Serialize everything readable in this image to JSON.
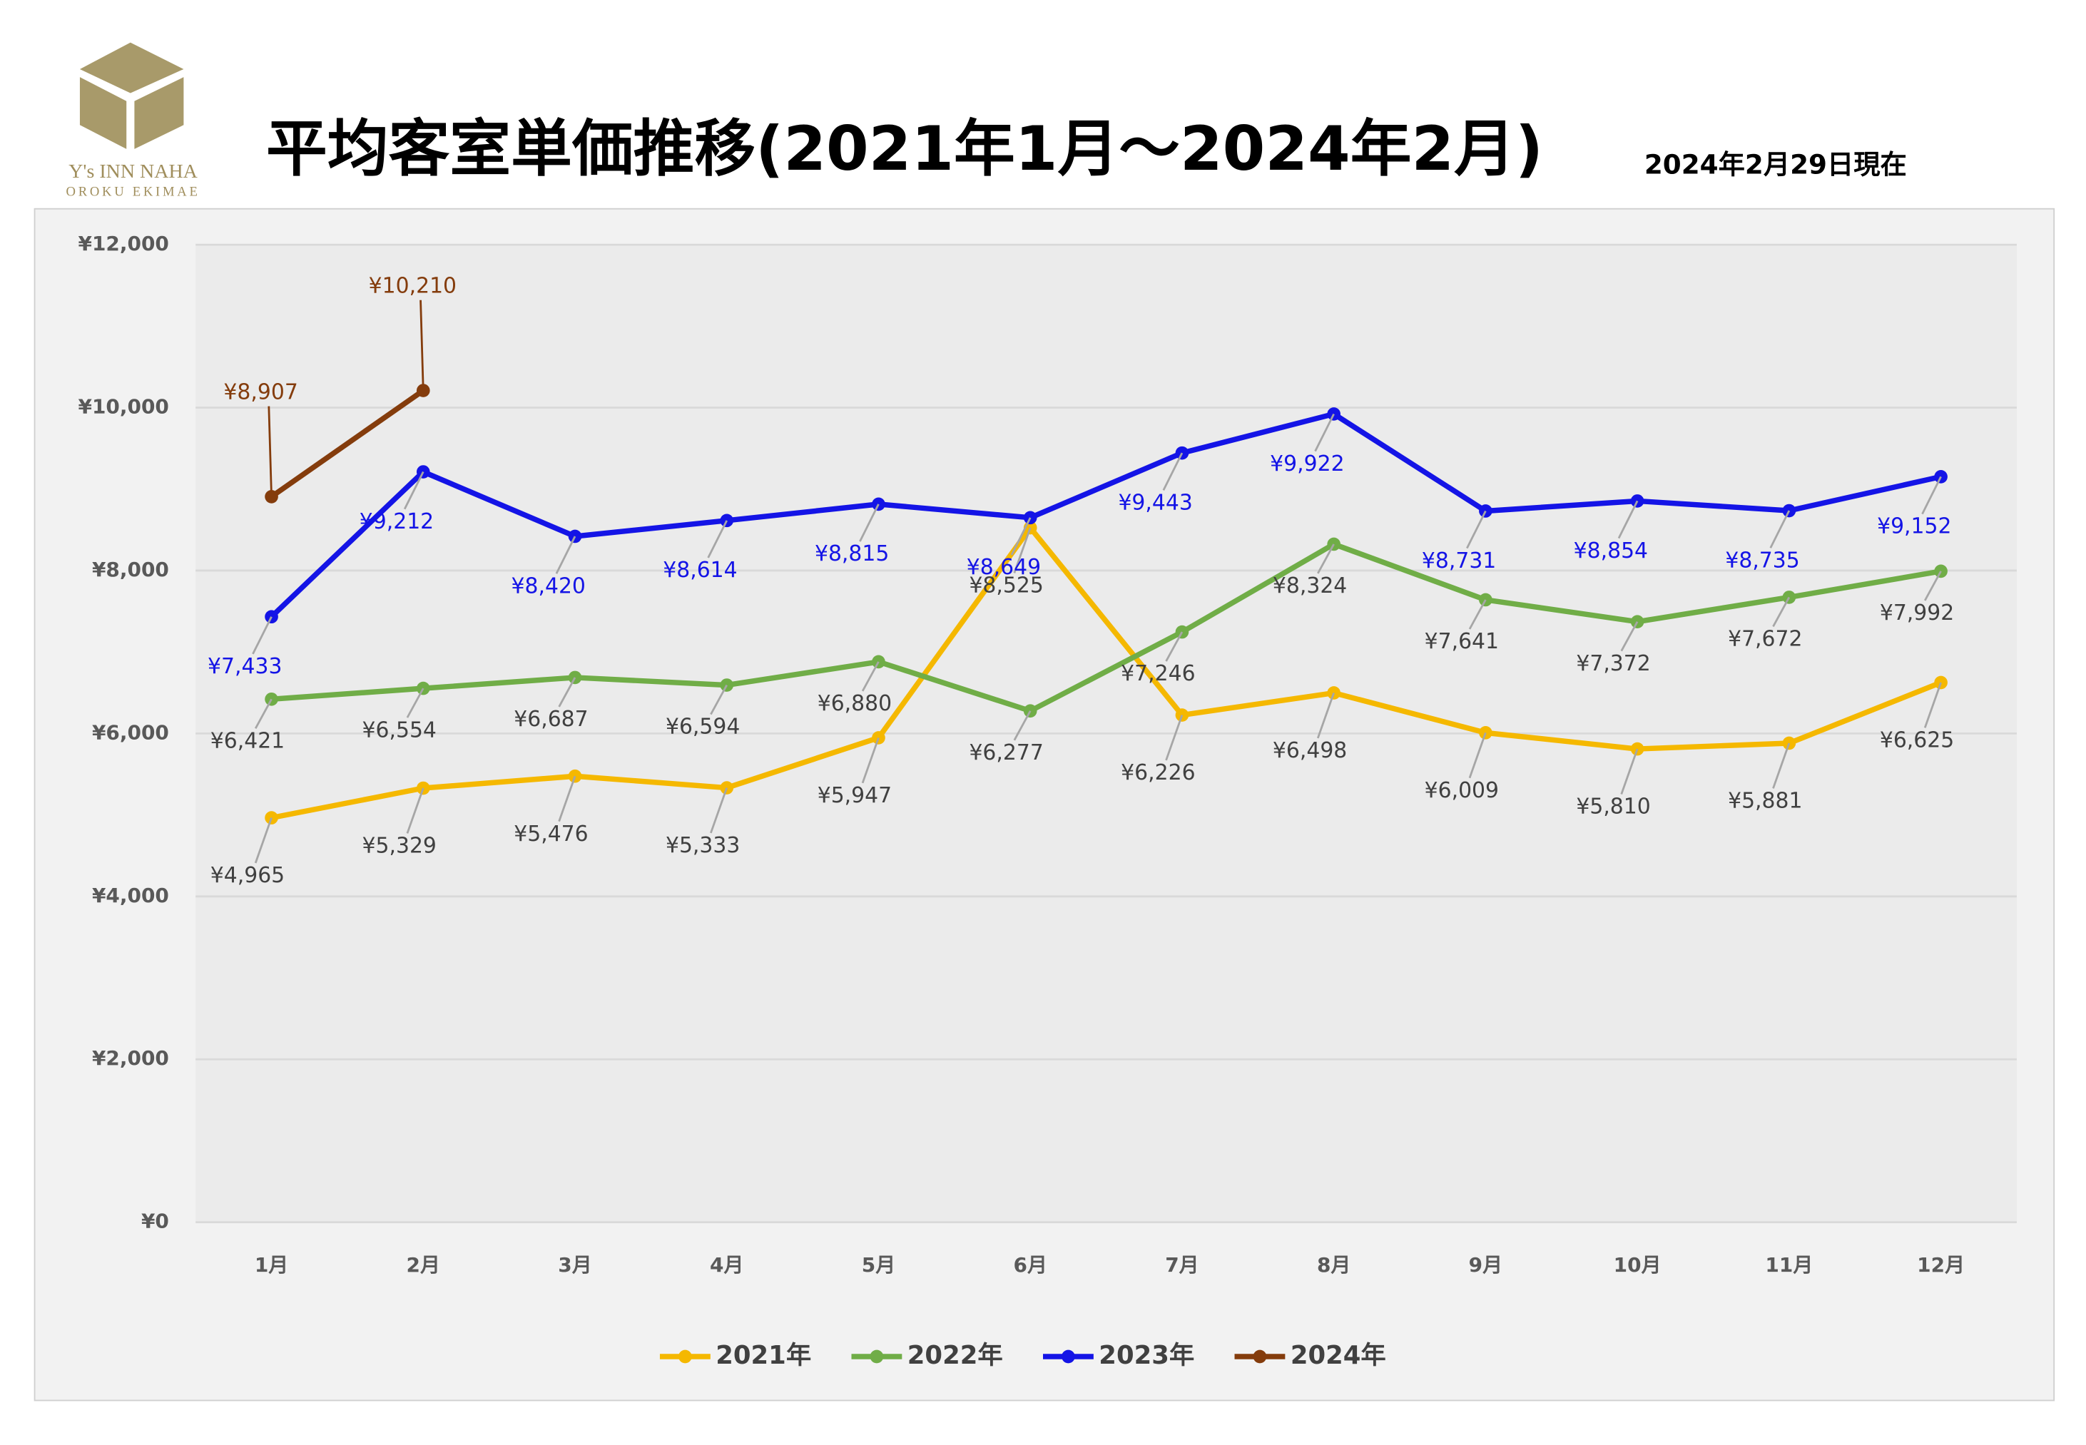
{
  "logo": {
    "name": "Y's INN NAHA",
    "sub": "OROKU EKIMAE"
  },
  "chart_data": {
    "type": "line",
    "title": "平均客室単価推移(2021年1月～2024年2月)",
    "subtitle": "2024年2月29日現在",
    "categories": [
      "1月",
      "2月",
      "3月",
      "4月",
      "5月",
      "6月",
      "7月",
      "8月",
      "9月",
      "10月",
      "11月",
      "12月"
    ],
    "ylim": [
      0,
      12000
    ],
    "yticks": [
      {
        "value": 0,
        "label": "¥0"
      },
      {
        "value": 2000,
        "label": "¥2,000"
      },
      {
        "value": 4000,
        "label": "¥4,000"
      },
      {
        "value": 6000,
        "label": "¥6,000"
      },
      {
        "value": 8000,
        "label": "¥8,000"
      },
      {
        "value": 10000,
        "label": "¥10,000"
      },
      {
        "value": 12000,
        "label": "¥12,000"
      }
    ],
    "grid": true,
    "legend": "bottom",
    "series": [
      {
        "name": "2021年",
        "color": "#f5b800",
        "label_color": "#404040",
        "values": [
          4965,
          5329,
          5476,
          5333,
          5947,
          8525,
          6226,
          6498,
          6009,
          5810,
          5881,
          6625
        ],
        "value_labels": [
          "¥4,965",
          "¥5,329",
          "¥5,476",
          "¥5,333",
          "¥5,947",
          "¥8,525",
          "¥6,226",
          "¥6,498",
          "¥6,009",
          "¥5,810",
          "¥5,881",
          "¥6,625"
        ]
      },
      {
        "name": "2022年",
        "color": "#70ad47",
        "label_color": "#404040",
        "values": [
          6421,
          6554,
          6687,
          6594,
          6880,
          6277,
          7246,
          8324,
          7641,
          7372,
          7672,
          7992
        ],
        "value_labels": [
          "¥6,421",
          "¥6,554",
          "¥6,687",
          "¥6,594",
          "¥6,880",
          "¥6,277",
          "¥7,246",
          "¥8,324",
          "¥7,641",
          "¥7,372",
          "¥7,672",
          "¥7,992"
        ]
      },
      {
        "name": "2023年",
        "color": "#1414e6",
        "label_color": "#1414e6",
        "values": [
          7433,
          9212,
          8420,
          8614,
          8815,
          8649,
          9443,
          9922,
          8731,
          8854,
          8735,
          9152
        ],
        "value_labels": [
          "¥7,433",
          "¥9,212",
          "¥8,420",
          "¥8,614",
          "¥8,815",
          "¥8,649",
          "¥9,443",
          "¥9,922",
          "¥8,731",
          "¥8,854",
          "¥8,735",
          "¥9,152"
        ]
      },
      {
        "name": "2024年",
        "color": "#843c0c",
        "label_color": "#843c0c",
        "values": [
          8907,
          10210,
          null,
          null,
          null,
          null,
          null,
          null,
          null,
          null,
          null,
          null
        ],
        "value_labels": [
          "¥8,907",
          "¥10,210",
          null,
          null,
          null,
          null,
          null,
          null,
          null,
          null,
          null,
          null
        ]
      }
    ]
  }
}
